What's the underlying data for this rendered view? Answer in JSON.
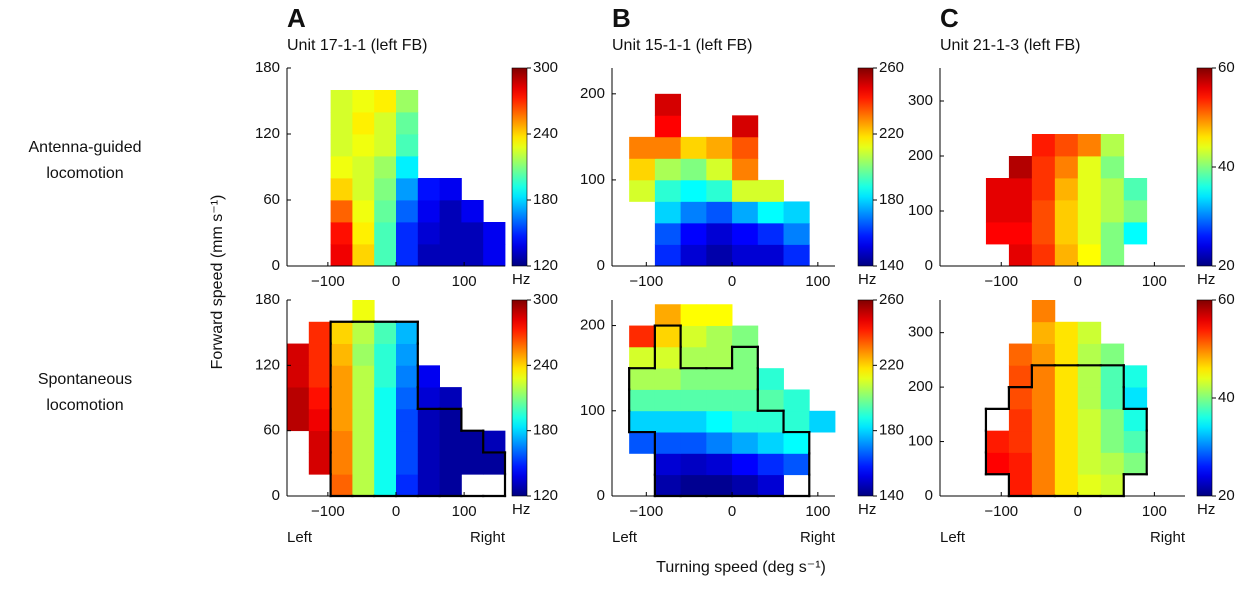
{
  "figure": {
    "ylabel": "Forward speed (mm s⁻¹)",
    "xlabel": "Turning speed (deg s⁻¹)",
    "row_labels": [
      [
        "Antenna-guided",
        "locomotion"
      ],
      [
        "Spontaneous",
        "locomotion"
      ]
    ]
  },
  "chart_data": [
    {
      "type": "heatmap",
      "panel": "A",
      "title": "Unit 17-1-1 (left FB)",
      "colormap": "jet",
      "xlim": [
        -160,
        160
      ],
      "xticks": [
        {
          "value": -100,
          "label": "−100"
        },
        0,
        100
      ],
      "ylim": [
        0,
        180
      ],
      "yticks": [
        0,
        60,
        120,
        180
      ],
      "xbins": [
        -160,
        -128,
        -96,
        -64,
        -32,
        0,
        32,
        64,
        96,
        128,
        160
      ],
      "ybins": [
        0,
        20,
        40,
        60,
        80,
        100,
        120,
        140,
        160,
        180
      ],
      "z": [
        [
          null,
          null,
          280,
          240,
          200,
          150,
          130,
          130,
          130,
          140
        ],
        [
          null,
          null,
          275,
          235,
          200,
          150,
          135,
          130,
          130,
          140
        ],
        [
          null,
          null,
          260,
          230,
          205,
          160,
          140,
          130,
          140,
          null
        ],
        [
          null,
          null,
          240,
          225,
          210,
          170,
          145,
          140,
          null,
          null
        ],
        [
          null,
          null,
          230,
          225,
          215,
          185,
          null,
          null,
          null,
          null
        ],
        [
          null,
          null,
          225,
          230,
          225,
          200,
          null,
          null,
          null,
          null
        ],
        [
          null,
          null,
          225,
          235,
          225,
          205,
          null,
          null,
          null,
          null
        ],
        [
          null,
          null,
          225,
          230,
          235,
          215,
          null,
          null,
          null,
          null
        ],
        [
          null,
          null,
          null,
          null,
          null,
          null,
          null,
          null,
          null,
          null
        ]
      ],
      "colorbar": {
        "lim": [
          120,
          300
        ],
        "ticks": [
          120,
          180,
          240,
          300
        ],
        "label": "Hz"
      }
    },
    {
      "type": "heatmap",
      "panel": "B",
      "title": "Unit 15-1-1 (left FB)",
      "colormap": "jet",
      "xlim": [
        -140,
        120
      ],
      "xticks": [
        {
          "value": -100,
          "label": "−100"
        },
        0,
        100
      ],
      "ylim": [
        0,
        230
      ],
      "yticks": [
        0,
        100,
        200
      ],
      "xbins": [
        -120,
        -90,
        -60,
        -30,
        0,
        30,
        60,
        90,
        120
      ],
      "ybins": [
        0,
        25,
        50,
        75,
        100,
        125,
        150,
        175,
        200,
        225
      ],
      "z": [
        [
          null,
          160,
          150,
          145,
          150,
          150,
          160,
          null
        ],
        [
          null,
          165,
          155,
          150,
          155,
          160,
          170,
          null
        ],
        [
          null,
          180,
          170,
          165,
          175,
          185,
          180,
          null
        ],
        [
          210,
          190,
          185,
          190,
          210,
          210,
          null,
          null
        ],
        [
          220,
          205,
          200,
          210,
          230,
          null,
          null,
          null
        ],
        [
          230,
          230,
          220,
          225,
          235,
          null,
          null,
          null
        ],
        [
          null,
          245,
          null,
          null,
          250,
          null,
          null,
          null
        ],
        [
          null,
          250,
          null,
          null,
          null,
          null,
          null,
          null
        ],
        [
          null,
          null,
          null,
          null,
          null,
          null,
          null,
          null
        ]
      ],
      "colorbar": {
        "lim": [
          140,
          260
        ],
        "ticks": [
          140,
          180,
          220,
          260
        ],
        "label": "Hz"
      }
    },
    {
      "type": "heatmap",
      "panel": "C",
      "title": "Unit 21-1-3 (left FB)",
      "colormap": "jet",
      "xlim": [
        -180,
        140
      ],
      "xticks": [
        {
          "value": -100,
          "label": "−100"
        },
        0,
        100
      ],
      "ylim": [
        0,
        360
      ],
      "yticks": [
        0,
        100,
        200,
        300
      ],
      "xbins": [
        -120,
        -90,
        -60,
        -30,
        0,
        30,
        60,
        90,
        120
      ],
      "ybins": [
        0,
        40,
        80,
        120,
        160,
        200,
        240,
        280,
        320,
        360
      ],
      "z": [
        [
          null,
          56,
          53,
          48,
          45,
          40,
          null,
          null
        ],
        [
          55,
          55,
          52,
          47,
          44,
          40,
          35,
          null
        ],
        [
          56,
          56,
          52,
          47,
          44,
          42,
          40,
          null
        ],
        [
          56,
          56,
          53,
          48,
          44,
          42,
          38,
          null
        ],
        [
          null,
          58,
          53,
          50,
          44,
          40,
          null,
          null
        ],
        [
          null,
          null,
          54,
          52,
          50,
          42,
          null,
          null
        ],
        [
          null,
          null,
          null,
          null,
          null,
          null,
          null,
          null
        ],
        [
          null,
          null,
          null,
          null,
          null,
          null,
          null,
          null
        ],
        [
          null,
          null,
          null,
          null,
          null,
          null,
          null,
          null
        ]
      ],
      "colorbar": {
        "lim": [
          20,
          60
        ],
        "ticks": [
          20,
          40,
          60
        ],
        "label": "Hz"
      }
    },
    {
      "type": "heatmap",
      "colormap": "jet",
      "x_end_labels": [
        "Left",
        "Right"
      ],
      "xlim": [
        -160,
        160
      ],
      "xticks": [
        {
          "value": -100,
          "label": "−100"
        },
        0,
        100
      ],
      "ylim": [
        0,
        180
      ],
      "yticks": [
        0,
        60,
        120,
        180
      ],
      "xbins": [
        -160,
        -128,
        -96,
        -64,
        -32,
        0,
        32,
        64,
        96,
        128,
        160
      ],
      "ybins": [
        0,
        20,
        40,
        60,
        80,
        100,
        120,
        140,
        160,
        180
      ],
      "z": [
        [
          null,
          null,
          260,
          220,
          190,
          150,
          130,
          125,
          null,
          null
        ],
        [
          null,
          285,
          255,
          220,
          190,
          155,
          130,
          125,
          125,
          125
        ],
        [
          null,
          285,
          255,
          220,
          190,
          155,
          130,
          125,
          125,
          130
        ],
        [
          290,
          280,
          250,
          220,
          190,
          155,
          130,
          125,
          null,
          null
        ],
        [
          290,
          275,
          250,
          220,
          190,
          160,
          135,
          130,
          null,
          null
        ],
        [
          285,
          270,
          250,
          220,
          195,
          165,
          140,
          null,
          null,
          null
        ],
        [
          285,
          270,
          245,
          215,
          195,
          170,
          null,
          null,
          null,
          null
        ],
        [
          null,
          270,
          240,
          220,
          200,
          175,
          null,
          null,
          null,
          null
        ],
        [
          null,
          null,
          null,
          230,
          null,
          null,
          null,
          null,
          null,
          null
        ]
      ],
      "colorbar": {
        "lim": [
          120,
          300
        ],
        "ticks": [
          120,
          180,
          240,
          300
        ],
        "label": "Hz"
      }
    },
    {
      "type": "heatmap",
      "colormap": "jet",
      "x_end_labels": [
        "Left",
        "Right"
      ],
      "xlim": [
        -140,
        120
      ],
      "xticks": [
        {
          "value": -100,
          "label": "−100"
        },
        0,
        100
      ],
      "ylim": [
        0,
        230
      ],
      "yticks": [
        0,
        100,
        200
      ],
      "xbins": [
        -120,
        -90,
        -60,
        -30,
        0,
        30,
        60,
        90,
        120
      ],
      "ybins": [
        0,
        25,
        50,
        75,
        100,
        125,
        150,
        175,
        200,
        225
      ],
      "z": [
        [
          null,
          145,
          142,
          142,
          145,
          150,
          null,
          null
        ],
        [
          null,
          150,
          148,
          150,
          155,
          160,
          165,
          null
        ],
        [
          165,
          165,
          165,
          170,
          175,
          180,
          185,
          null
        ],
        [
          180,
          180,
          180,
          185,
          190,
          190,
          190,
          180
        ],
        [
          195,
          195,
          195,
          195,
          195,
          195,
          190,
          null
        ],
        [
          205,
          205,
          200,
          200,
          200,
          190,
          null,
          null
        ],
        [
          210,
          210,
          205,
          205,
          200,
          null,
          null,
          null
        ],
        [
          240,
          220,
          210,
          205,
          200,
          null,
          null,
          null
        ],
        [
          null,
          225,
          215,
          215,
          null,
          null,
          null,
          null
        ]
      ],
      "colorbar": {
        "lim": [
          140,
          260
        ],
        "ticks": [
          140,
          180,
          220,
          260
        ],
        "label": "Hz"
      }
    },
    {
      "type": "heatmap",
      "colormap": "jet",
      "x_end_labels": [
        "Left",
        "Right"
      ],
      "xlim": [
        -180,
        140
      ],
      "xticks": [
        {
          "value": -100,
          "label": "−100"
        },
        0,
        100
      ],
      "ylim": [
        0,
        360
      ],
      "yticks": [
        0,
        100,
        200,
        300
      ],
      "xbins": [
        -120,
        -90,
        -60,
        -30,
        0,
        30,
        60,
        90,
        120
      ],
      "ybins": [
        0,
        40,
        80,
        120,
        160,
        200,
        240,
        280,
        320,
        360
      ],
      "z": [
        [
          null,
          54,
          50,
          46,
          44,
          43,
          null,
          null
        ],
        [
          55,
          54,
          50,
          46,
          43,
          42,
          40,
          null
        ],
        [
          54,
          53,
          50,
          46,
          43,
          40,
          38,
          null
        ],
        [
          null,
          53,
          50,
          46,
          43,
          40,
          36,
          null
        ],
        [
          null,
          52,
          50,
          46,
          42,
          38,
          34,
          null
        ],
        [
          null,
          52,
          50,
          46,
          42,
          38,
          36,
          null
        ],
        [
          null,
          51,
          49,
          46,
          42,
          40,
          null,
          null
        ],
        [
          null,
          null,
          48,
          46,
          43,
          null,
          null,
          null
        ],
        [
          null,
          null,
          50,
          null,
          null,
          null,
          null,
          null
        ]
      ],
      "colorbar": {
        "lim": [
          20,
          60
        ],
        "ticks": [
          20,
          40,
          60
        ],
        "label": "Hz"
      }
    }
  ]
}
